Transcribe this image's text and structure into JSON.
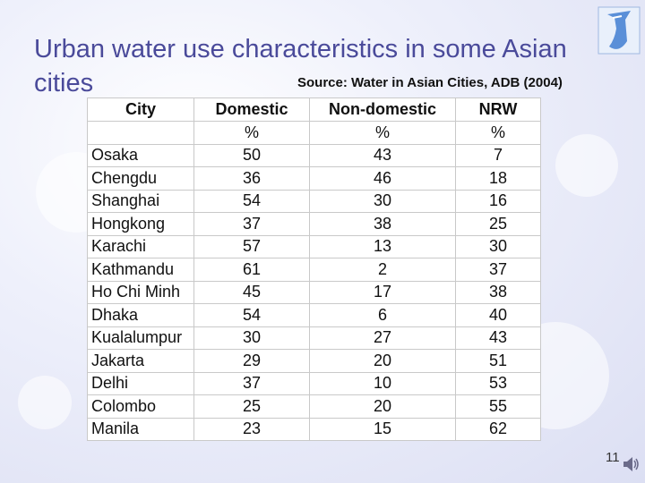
{
  "slide": {
    "title": "Urban water use characteristics in some Asian cities",
    "source": "Source: Water in Asian Cities, ADB (2004)",
    "page_number": "11"
  },
  "table": {
    "headers": [
      "City",
      "Domestic",
      "Non-domestic",
      "NRW"
    ],
    "units": [
      "",
      "%",
      "%",
      "%"
    ],
    "rows": [
      [
        "Osaka",
        "50",
        "43",
        "7"
      ],
      [
        "Chengdu",
        "36",
        "46",
        "18"
      ],
      [
        "Shanghai",
        "54",
        "30",
        "16"
      ],
      [
        "Hongkong",
        "37",
        "38",
        "25"
      ],
      [
        "Karachi",
        "57",
        "13",
        "30"
      ],
      [
        "Kathmandu",
        "61",
        "2",
        "37"
      ],
      [
        "Ho Chi Minh",
        "45",
        "17",
        "38"
      ],
      [
        "Dhaka",
        "54",
        "6",
        "40"
      ],
      [
        "Kualalumpur",
        "30",
        "27",
        "43"
      ],
      [
        "Jakarta",
        "29",
        "20",
        "51"
      ],
      [
        "Delhi",
        "37",
        "10",
        "53"
      ],
      [
        "Colombo",
        "25",
        "20",
        "55"
      ],
      [
        "Manila",
        "23",
        "15",
        "62"
      ]
    ]
  },
  "colors": {
    "title": "#4a4a9a",
    "logo": "#5a8fd8"
  },
  "icons": {
    "logo": "water-droplet-logo-icon",
    "audio": "speaker-icon"
  }
}
